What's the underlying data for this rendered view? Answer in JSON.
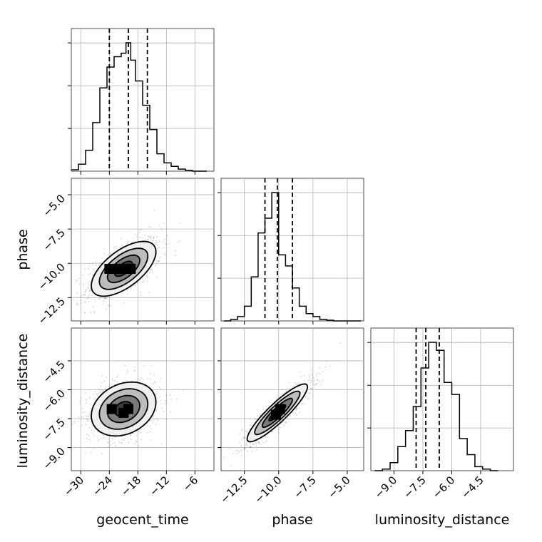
{
  "chart_data": {
    "type": "corner",
    "grid": true,
    "parameters": [
      "geocent_time",
      "phase",
      "luminosity_distance"
    ],
    "axis_labels": {
      "x": [
        "geocent_time",
        "phase",
        "luminosity_distance"
      ],
      "y": [
        "",
        "phase",
        "luminosity_distance"
      ]
    },
    "ranges": {
      "geocent_time": [
        -32.0,
        -2.0
      ],
      "phase": [
        -14.2,
        -3.8
      ],
      "luminosity_distance": [
        -10.2,
        -2.8
      ]
    },
    "ticks": {
      "geocent_time": [
        -30,
        -24,
        -18,
        -12,
        -6
      ],
      "phase": [
        -12.5,
        -10.0,
        -7.5,
        -5.0
      ],
      "luminosity_distance": [
        -9.0,
        -7.5,
        -6.0,
        -4.5
      ]
    },
    "tick_labels": {
      "geocent_time": [
        "−30",
        "−24",
        "−18",
        "−12",
        "−6"
      ],
      "phase": [
        "−12.5",
        "−10.0",
        "−7.5",
        "−5.0"
      ],
      "luminosity_distance": [
        "−9.0",
        "−7.5",
        "−6.0",
        "−4.5"
      ]
    },
    "histograms": {
      "geocent_time": {
        "edges": [
          -32.0,
          -30.5,
          -29.0,
          -27.5,
          -26.0,
          -24.5,
          -23.0,
          -21.5,
          -20.5,
          -19.5,
          -18.5,
          -17.0,
          -15.5,
          -14.0,
          -12.5,
          -11.0,
          -9.5,
          -8.0,
          -6.5,
          -5.0,
          -3.5
        ],
        "counts": [
          2,
          10,
          30,
          70,
          120,
          150,
          165,
          170,
          185,
          160,
          130,
          95,
          60,
          25,
          12,
          7,
          3,
          1,
          0,
          0
        ]
      },
      "phase": {
        "edges": [
          -14.0,
          -13.5,
          -13.0,
          -12.5,
          -12.0,
          -11.5,
          -11.0,
          -10.5,
          -10.0,
          -9.5,
          -9.0,
          -8.5,
          -8.0,
          -7.5,
          -7.0,
          -6.5,
          -6.0,
          -5.5,
          -5.0,
          -4.5,
          -4.0
        ],
        "counts": [
          0,
          2,
          6,
          20,
          60,
          120,
          140,
          175,
          90,
          75,
          45,
          20,
          10,
          6,
          2,
          1,
          0,
          0,
          0,
          0
        ]
      },
      "luminosity_distance": {
        "edges": [
          -10.0,
          -9.6,
          -9.2,
          -8.8,
          -8.4,
          -8.0,
          -7.6,
          -7.2,
          -6.8,
          -6.4,
          -6.0,
          -5.6,
          -5.2,
          -4.8,
          -4.4,
          -4.0,
          -3.6
        ],
        "counts": [
          0,
          2,
          10,
          30,
          50,
          80,
          128,
          160,
          150,
          110,
          95,
          40,
          20,
          5,
          2,
          0
        ]
      }
    },
    "quantiles": {
      "geocent_time": [
        -24.0,
        -20.0,
        -16.0
      ],
      "phase": [
        -11.0,
        -10.1,
        -9.0
      ],
      "luminosity_distance": [
        -7.85,
        -7.35,
        -6.65
      ]
    },
    "pairs": [
      {
        "x": "geocent_time",
        "y": "phase",
        "center": [
          -21.0,
          -10.4
        ],
        "sigma": [
          3.4,
          1.0
        ],
        "corr": 0.62,
        "peak_cells": [
          [
            -22.5,
            -10.4
          ],
          [
            -21.0,
            -10.4
          ],
          [
            -19.5,
            -10.4
          ],
          [
            -24.0,
            -10.4
          ]
        ]
      },
      {
        "x": "geocent_time",
        "y": "luminosity_distance",
        "center": [
          -21.0,
          -7.0
        ],
        "sigma": [
          3.4,
          0.7
        ],
        "corr": 0.25,
        "peak_cells": [
          [
            -23.5,
            -7.0
          ],
          [
            -21.0,
            -7.2
          ],
          [
            -20.0,
            -7.0
          ]
        ]
      },
      {
        "x": "phase",
        "y": "luminosity_distance",
        "center": [
          -10.1,
          -7.2
        ],
        "sigma": [
          1.1,
          0.75
        ],
        "corr": 0.9,
        "peak_cells": [
          [
            -10.2,
            -7.3
          ],
          [
            -9.9,
            -7.0
          ]
        ]
      }
    ],
    "colors": {
      "line": "#000000",
      "points": "#555555",
      "grid": "#b0b0b0"
    }
  }
}
